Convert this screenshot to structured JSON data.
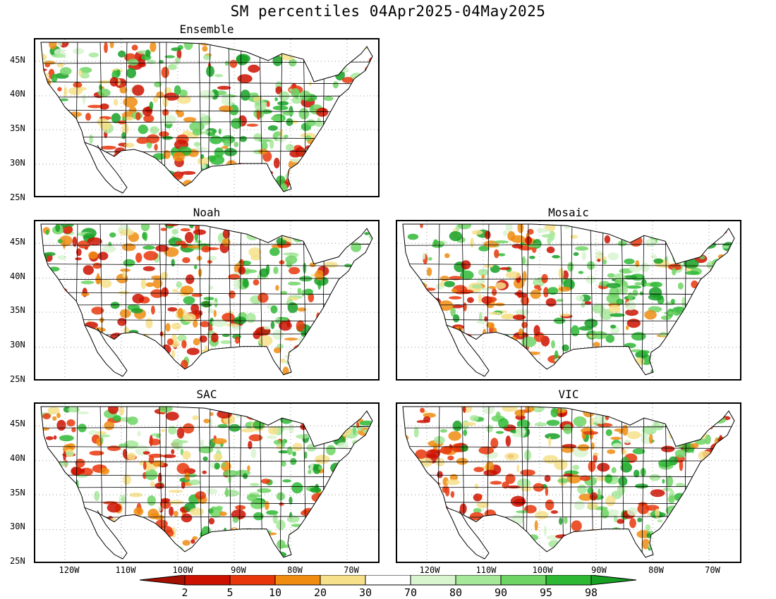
{
  "title": "SM percentiles 04Apr2025-04May2025",
  "panels": {
    "ensemble": "Ensemble",
    "noah": "Noah",
    "mosaic": "Mosaic",
    "sac": "SAC",
    "vic": "VIC"
  },
  "lat_labels": [
    "45N",
    "40N",
    "35N",
    "30N",
    "25N"
  ],
  "lon_labels": [
    "120W",
    "110W",
    "100W",
    "90W",
    "80W",
    "70W"
  ],
  "colorbar": {
    "labels": [
      "2",
      "5",
      "10",
      "20",
      "30",
      "70",
      "80",
      "90",
      "95",
      "98"
    ],
    "colors": [
      "#a50f00",
      "#cc1100",
      "#e8360a",
      "#f08c10",
      "#f6e08a",
      "#ffffff",
      "#d8f5d0",
      "#a6e89a",
      "#6ed564",
      "#2db834",
      "#16a024"
    ]
  }
}
